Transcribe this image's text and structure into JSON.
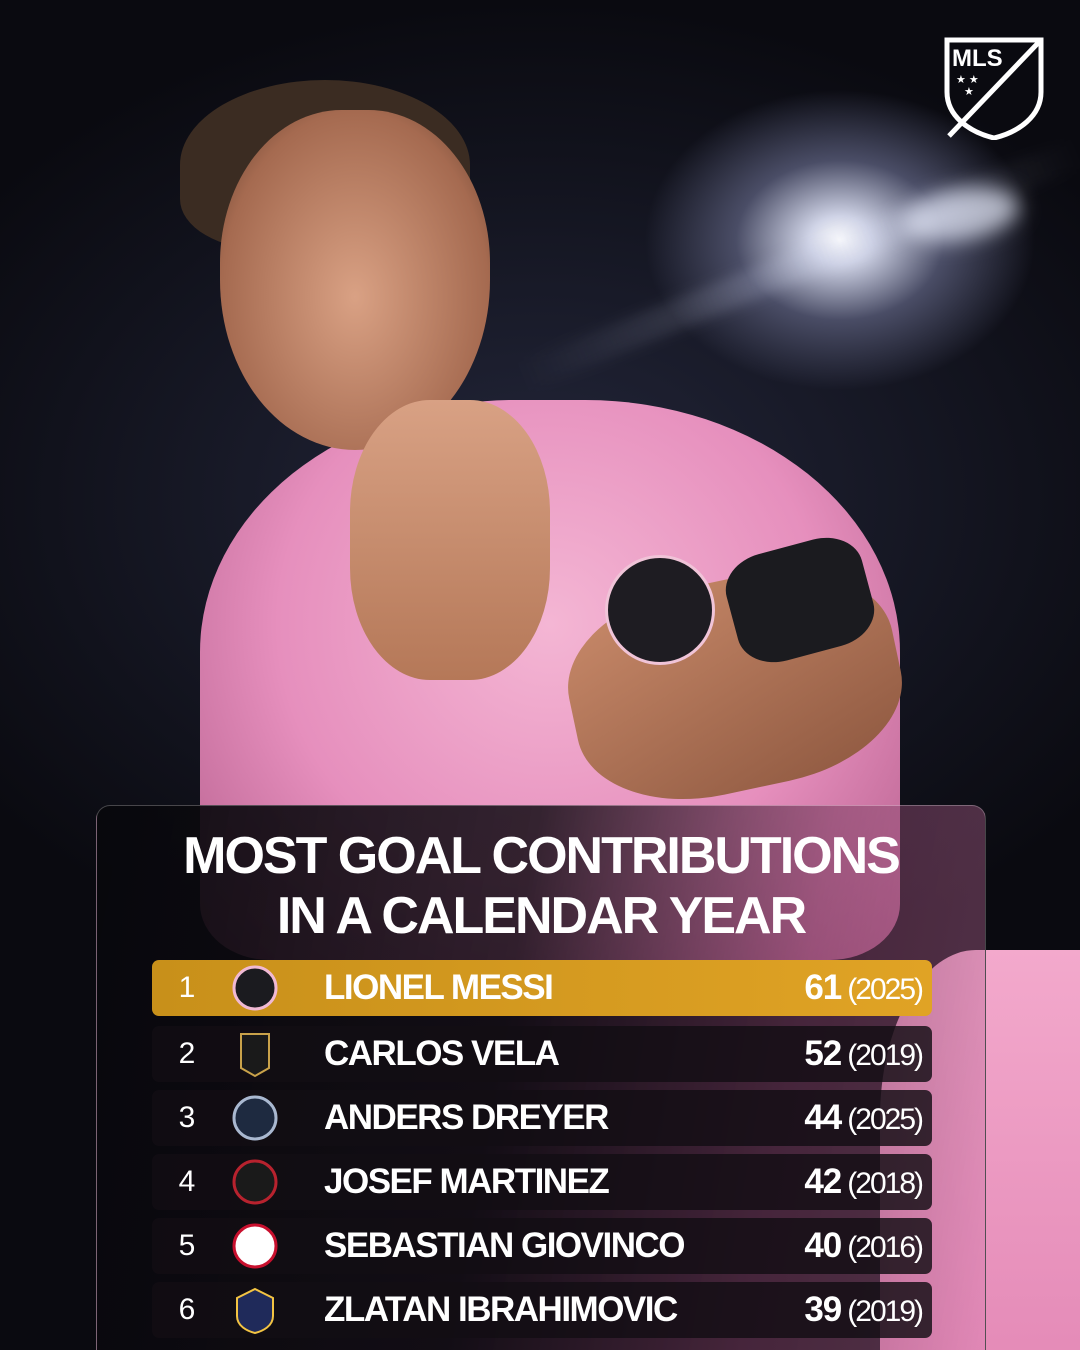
{
  "brand": {
    "logo_text": "MLS"
  },
  "title": {
    "line1": "MOST GOAL CONTRIBUTIONS",
    "line2": "IN A CALENDAR YEAR"
  },
  "colors": {
    "highlight": "#d99d22",
    "row_bg": "#120e14",
    "jersey_pink": "#f0a8cc"
  },
  "rows": [
    {
      "rank": "1",
      "club_icon": "inter-miami-crest-icon",
      "name": "LIONEL MESSI",
      "value": "61",
      "year": "(2025)",
      "highlighted": true
    },
    {
      "rank": "2",
      "club_icon": "lafc-crest-icon",
      "name": "CARLOS VELA",
      "value": "52",
      "year": "(2019)"
    },
    {
      "rank": "3",
      "club_icon": "san-diego-fc-crest-icon",
      "name": "ANDERS DREYER",
      "value": "44",
      "year": "(2025)"
    },
    {
      "rank": "4",
      "club_icon": "atlanta-united-crest-icon",
      "name": "JOSEF MARTINEZ",
      "value": "42",
      "year": "(2018)"
    },
    {
      "rank": "5",
      "club_icon": "toronto-fc-crest-icon",
      "name": "SEBASTIAN GIOVINCO",
      "value": "40",
      "year": "(2016)"
    },
    {
      "rank": "6",
      "club_icon": "la-galaxy-crest-icon",
      "name": "ZLATAN IBRAHIMOVIC",
      "value": "39",
      "year": "(2019)"
    }
  ]
}
